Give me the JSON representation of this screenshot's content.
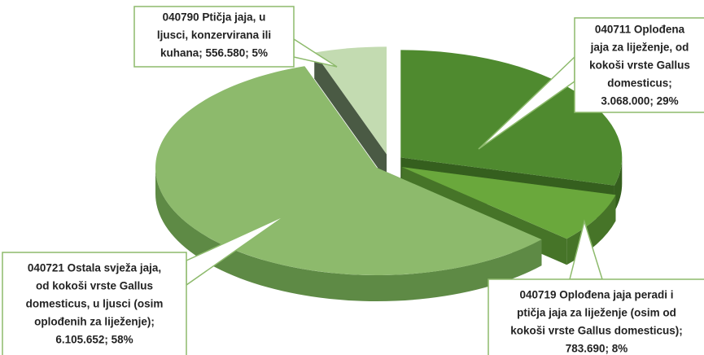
{
  "chart_data": {
    "type": "pie",
    "labels": [
      [
        "040711 Oplođena",
        "jaja za liježenje, od",
        "kokoši vrste Gallus",
        "domesticus;",
        "3.068.000; 29%"
      ],
      [
        "040719 Oplođena jaja peradi i",
        "ptičja jaja za liježenje (osim od",
        "kokoši vrste Gallus domesticus);",
        "783.690; 8%"
      ],
      [
        "040721 Ostala svježa jaja,",
        "od kokoši vrste Gallus",
        "domesticus, u ljusci (osim",
        "oplođenih za liježenje);",
        "6.105.652; 58%"
      ],
      [
        "040790 Ptičja jaja, u",
        "ljusci, konzervirana ili",
        "kuhana; 556.580; 5%"
      ]
    ],
    "values": [
      3068000,
      783690,
      6105652,
      556580
    ],
    "colors": [
      "#4f8a2f",
      "#6aa83c",
      "#8dba6c",
      "#c3dbb1"
    ],
    "side_colors": [
      "#355f1e",
      "#467428",
      "#5e8a45",
      "#4a5a44"
    ]
  }
}
